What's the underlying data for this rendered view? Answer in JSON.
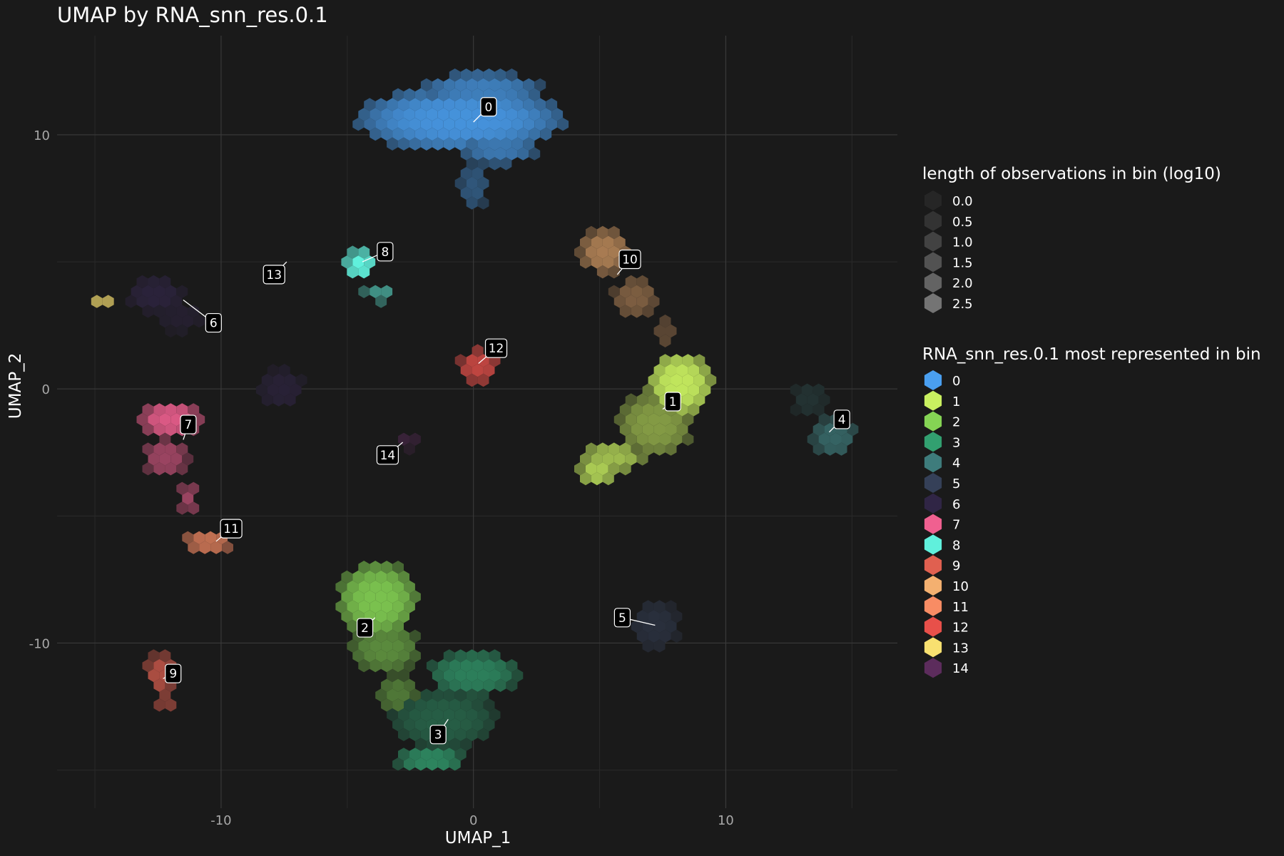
{
  "chart_data": {
    "type": "scatter",
    "subtype": "hexbin",
    "title": "UMAP by RNA_snn_res.0.1",
    "xlabel": "UMAP_1",
    "ylabel": "UMAP_2",
    "xlim": [
      -16.5,
      16.8
    ],
    "ylim": [
      -16.5,
      13.9
    ],
    "xticks": [
      -10,
      0,
      10
    ],
    "yticks": [
      -10,
      0,
      10
    ],
    "xtick_labels": [
      "-10",
      "0",
      "10"
    ],
    "ytick_labels": [
      "-10",
      "0",
      "10"
    ],
    "grid": true,
    "theme": "dark",
    "colors": {
      "background": "#1a1a1a",
      "grid_major": "#3a3a3a",
      "grid_minor": "#2a2a2a"
    },
    "legend_position": "right",
    "size_legend": {
      "title": "length of observations in bin (log10)",
      "values": [
        "0.0",
        "0.5",
        "1.0",
        "1.5",
        "2.0",
        "2.5"
      ],
      "shades": [
        "#262626",
        "#333333",
        "#424242",
        "#525252",
        "#636363",
        "#747474"
      ]
    },
    "cluster_legend": {
      "title": "RNA_snn_res.0.1 most represented in bin",
      "entries": [
        {
          "label": "0",
          "color": "#4a9ff0"
        },
        {
          "label": "1",
          "color": "#c9f060"
        },
        {
          "label": "2",
          "color": "#85d454"
        },
        {
          "label": "3",
          "color": "#32a070"
        },
        {
          "label": "4",
          "color": "#3e7c7c"
        },
        {
          "label": "5",
          "color": "#354058"
        },
        {
          "label": "6",
          "color": "#302545"
        },
        {
          "label": "7",
          "color": "#f06090"
        },
        {
          "label": "8",
          "color": "#60f0dc"
        },
        {
          "label": "9",
          "color": "#e06050"
        },
        {
          "label": "10",
          "color": "#f4b070"
        },
        {
          "label": "11",
          "color": "#f88c64"
        },
        {
          "label": "12",
          "color": "#e8504a"
        },
        {
          "label": "13",
          "color": "#f8e070"
        },
        {
          "label": "14",
          "color": "#5c2c5c"
        }
      ]
    },
    "clusters": [
      {
        "id": "0",
        "label_pos": [
          0.6,
          11.1
        ],
        "centroid": [
          0.0,
          10.5
        ],
        "blobs": [
          {
            "x": -0.5,
            "y": 10.6,
            "rx": 4.2,
            "ry": 1.3,
            "bright": 0.9
          },
          {
            "x": 0.3,
            "y": 11.7,
            "rx": 2.5,
            "ry": 0.8,
            "bright": 0.75
          },
          {
            "x": 1.0,
            "y": 9.5,
            "rx": 1.6,
            "ry": 0.7,
            "bright": 0.7
          },
          {
            "x": 0.0,
            "y": 8.0,
            "rx": 0.6,
            "ry": 1.0,
            "bright": 0.45
          }
        ]
      },
      {
        "id": "1",
        "label_pos": [
          7.9,
          -0.5
        ],
        "centroid": [
          7.5,
          -0.8
        ],
        "blobs": [
          {
            "x": 8.2,
            "y": 0.2,
            "rx": 1.3,
            "ry": 1.3,
            "bright": 0.95
          },
          {
            "x": 7.2,
            "y": -1.4,
            "rx": 1.5,
            "ry": 1.3,
            "bright": 0.6
          },
          {
            "x": 5.5,
            "y": -2.7,
            "rx": 1.3,
            "ry": 0.6,
            "bright": 0.75
          },
          {
            "x": 4.9,
            "y": -3.3,
            "rx": 0.8,
            "ry": 0.4,
            "bright": 0.85
          }
        ]
      },
      {
        "id": "2",
        "label_pos": [
          -4.3,
          -9.4
        ],
        "centroid": [
          -3.9,
          -9.0
        ],
        "blobs": [
          {
            "x": -3.8,
            "y": -8.3,
            "rx": 1.6,
            "ry": 1.5,
            "bright": 0.9
          },
          {
            "x": -3.5,
            "y": -10.2,
            "rx": 1.4,
            "ry": 1.0,
            "bright": 0.6
          },
          {
            "x": -3.0,
            "y": -12.0,
            "rx": 0.8,
            "ry": 0.8,
            "bright": 0.5
          }
        ]
      },
      {
        "id": "3",
        "label_pos": [
          -1.4,
          -13.6
        ],
        "centroid": [
          -1.0,
          -13.0
        ],
        "blobs": [
          {
            "x": 0.0,
            "y": -11.2,
            "rx": 1.8,
            "ry": 0.9,
            "bright": 0.75
          },
          {
            "x": -1.2,
            "y": -13.0,
            "rx": 2.1,
            "ry": 1.2,
            "bright": 0.5
          },
          {
            "x": -1.7,
            "y": -14.6,
            "rx": 1.4,
            "ry": 0.5,
            "bright": 0.8
          }
        ]
      },
      {
        "id": "4",
        "label_pos": [
          14.6,
          -1.2
        ],
        "centroid": [
          14.1,
          -1.7
        ],
        "blobs": [
          {
            "x": 14.3,
            "y": -1.9,
            "rx": 0.9,
            "ry": 0.8,
            "bright": 0.75
          },
          {
            "x": 13.3,
            "y": -0.4,
            "rx": 0.7,
            "ry": 0.7,
            "bright": 0.25
          }
        ]
      },
      {
        "id": "5",
        "label_pos": [
          5.9,
          -9.0
        ],
        "centroid": [
          7.2,
          -9.3
        ],
        "blobs": [
          {
            "x": 7.2,
            "y": -9.3,
            "rx": 1.0,
            "ry": 1.0,
            "bright": 0.55
          }
        ]
      },
      {
        "id": "6",
        "label_pos": [
          -10.3,
          2.6
        ],
        "centroid": [
          -11.5,
          3.5
        ],
        "blobs": [
          {
            "x": -12.6,
            "y": 3.7,
            "rx": 1.1,
            "ry": 0.7,
            "bright": 0.75
          },
          {
            "x": -11.6,
            "y": 2.8,
            "rx": 0.9,
            "ry": 0.6,
            "bright": 0.5
          },
          {
            "x": -7.6,
            "y": 0.0,
            "rx": 0.9,
            "ry": 0.8,
            "bright": 0.65
          }
        ]
      },
      {
        "id": "7",
        "label_pos": [
          -11.3,
          -1.4
        ],
        "centroid": [
          -11.5,
          -2.0
        ],
        "blobs": [
          {
            "x": -12.0,
            "y": -1.2,
            "rx": 1.2,
            "ry": 0.7,
            "bright": 0.9
          },
          {
            "x": -12.2,
            "y": -2.7,
            "rx": 0.9,
            "ry": 0.8,
            "bright": 0.6
          },
          {
            "x": -11.3,
            "y": -4.3,
            "rx": 0.4,
            "ry": 0.6,
            "bright": 0.6
          }
        ]
      },
      {
        "id": "8",
        "label_pos": [
          -3.5,
          5.4
        ],
        "centroid": [
          -4.4,
          5.0
        ],
        "blobs": [
          {
            "x": -4.5,
            "y": 4.9,
            "rx": 0.6,
            "ry": 0.6,
            "bright": 1.0
          },
          {
            "x": -3.7,
            "y": 3.8,
            "rx": 0.7,
            "ry": 0.4,
            "bright": 0.55
          }
        ]
      },
      {
        "id": "9",
        "label_pos": [
          -11.9,
          -11.2
        ],
        "centroid": [
          -12.3,
          -11.4
        ],
        "blobs": [
          {
            "x": -12.4,
            "y": -11.2,
            "rx": 0.6,
            "ry": 0.8,
            "bright": 0.75
          },
          {
            "x": -12.2,
            "y": -12.3,
            "rx": 0.4,
            "ry": 0.4,
            "bright": 0.55
          }
        ]
      },
      {
        "id": "10",
        "label_pos": [
          6.2,
          5.1
        ],
        "centroid": [
          5.7,
          4.5
        ],
        "blobs": [
          {
            "x": 5.2,
            "y": 5.4,
            "rx": 1.0,
            "ry": 0.9,
            "bright": 0.65
          },
          {
            "x": 6.4,
            "y": 3.6,
            "rx": 0.9,
            "ry": 0.8,
            "bright": 0.45
          },
          {
            "x": 7.6,
            "y": 2.2,
            "rx": 0.5,
            "ry": 0.7,
            "bright": 0.3
          }
        ]
      },
      {
        "id": "11",
        "label_pos": [
          -9.6,
          -5.5
        ],
        "centroid": [
          -10.2,
          -6.0
        ],
        "blobs": [
          {
            "x": -10.5,
            "y": -6.0,
            "rx": 1.0,
            "ry": 0.5,
            "bright": 0.75
          }
        ]
      },
      {
        "id": "12",
        "label_pos": [
          0.9,
          1.6
        ],
        "centroid": [
          0.2,
          1.0
        ],
        "blobs": [
          {
            "x": 0.2,
            "y": 0.9,
            "rx": 0.8,
            "ry": 0.7,
            "bright": 0.8
          }
        ]
      },
      {
        "id": "13",
        "label_pos": [
          -7.9,
          4.5
        ],
        "centroid": [
          -7.4,
          5.0
        ],
        "blobs": [
          {
            "x": -14.7,
            "y": 3.4,
            "rx": 0.5,
            "ry": 0.3,
            "bright": 0.7
          }
        ]
      },
      {
        "id": "14",
        "label_pos": [
          -3.4,
          -2.6
        ],
        "centroid": [
          -2.8,
          -2.1
        ],
        "blobs": [
          {
            "x": -2.7,
            "y": -2.0,
            "rx": 0.5,
            "ry": 0.4,
            "bright": 0.45
          }
        ]
      }
    ]
  }
}
